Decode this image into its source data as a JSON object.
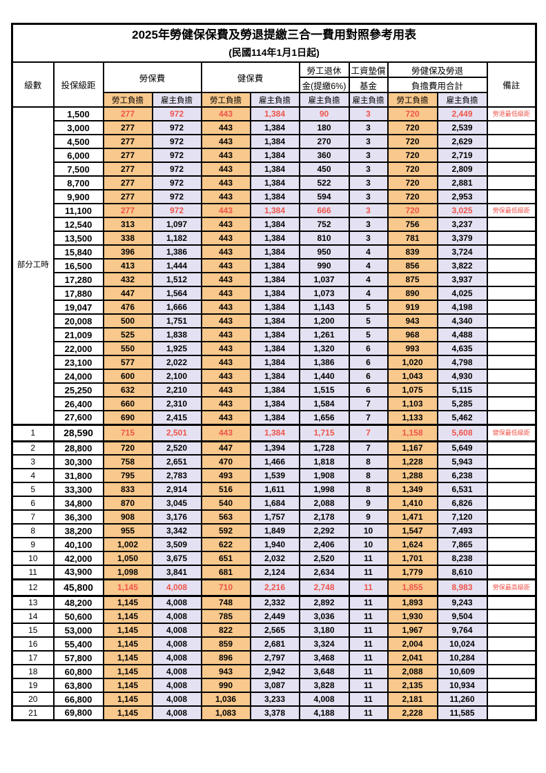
{
  "title": "2025年勞健保保費及勞退提繳三合一費用對照參考用表",
  "subtitle": "(民國114年1月1日起)",
  "header": {
    "level": "級數",
    "bracket": "投保級距",
    "labor_insurance": "勞保費",
    "health_insurance": "健保費",
    "pension_line1": "勞工退休",
    "pension_line2": "金(提繳6%)",
    "wage_fund_line1": "工資墊償",
    "wage_fund_line2": "基金",
    "total_line1": "勞健保及勞退",
    "total_line2": "負擔費用合計",
    "employee_burden": "勞工負擔",
    "employer_burden": "雇主負擔",
    "remark": "備註"
  },
  "part_time": {
    "label": "部分工時",
    "span": 23
  },
  "colors": {
    "employee_bg": "#F8C88C",
    "employer_bg": "#E4E2F2",
    "highlight_red": "#EF544B",
    "grid": "#000000"
  },
  "rows": [
    {
      "lv": null,
      "br": "1,500",
      "a": "277",
      "b": "972",
      "c": "443",
      "d": "1,384",
      "e": "90",
      "f": "3",
      "g": "720",
      "h": "2,449",
      "rm": "勞退最低級距",
      "red": true
    },
    {
      "lv": null,
      "br": "3,000",
      "a": "277",
      "b": "972",
      "c": "443",
      "d": "1,384",
      "e": "180",
      "f": "3",
      "g": "720",
      "h": "2,539",
      "rm": ""
    },
    {
      "lv": null,
      "br": "4,500",
      "a": "277",
      "b": "972",
      "c": "443",
      "d": "1,384",
      "e": "270",
      "f": "3",
      "g": "720",
      "h": "2,629",
      "rm": ""
    },
    {
      "lv": null,
      "br": "6,000",
      "a": "277",
      "b": "972",
      "c": "443",
      "d": "1,384",
      "e": "360",
      "f": "3",
      "g": "720",
      "h": "2,719",
      "rm": ""
    },
    {
      "lv": null,
      "br": "7,500",
      "a": "277",
      "b": "972",
      "c": "443",
      "d": "1,384",
      "e": "450",
      "f": "3",
      "g": "720",
      "h": "2,809",
      "rm": ""
    },
    {
      "lv": null,
      "br": "8,700",
      "a": "277",
      "b": "972",
      "c": "443",
      "d": "1,384",
      "e": "522",
      "f": "3",
      "g": "720",
      "h": "2,881",
      "rm": ""
    },
    {
      "lv": null,
      "br": "9,900",
      "a": "277",
      "b": "972",
      "c": "443",
      "d": "1,384",
      "e": "594",
      "f": "3",
      "g": "720",
      "h": "2,953",
      "rm": ""
    },
    {
      "lv": null,
      "br": "11,100",
      "a": "277",
      "b": "972",
      "c": "443",
      "d": "1,384",
      "e": "666",
      "f": "3",
      "g": "720",
      "h": "3,025",
      "rm": "勞保最低級距",
      "red": true
    },
    {
      "lv": null,
      "br": "12,540",
      "a": "313",
      "b": "1,097",
      "c": "443",
      "d": "1,384",
      "e": "752",
      "f": "3",
      "g": "756",
      "h": "3,237",
      "rm": ""
    },
    {
      "lv": null,
      "br": "13,500",
      "a": "338",
      "b": "1,182",
      "c": "443",
      "d": "1,384",
      "e": "810",
      "f": "3",
      "g": "781",
      "h": "3,379",
      "rm": ""
    },
    {
      "lv": null,
      "br": "15,840",
      "a": "396",
      "b": "1,386",
      "c": "443",
      "d": "1,384",
      "e": "950",
      "f": "4",
      "g": "839",
      "h": "3,724",
      "rm": ""
    },
    {
      "lv": null,
      "br": "16,500",
      "a": "413",
      "b": "1,444",
      "c": "443",
      "d": "1,384",
      "e": "990",
      "f": "4",
      "g": "856",
      "h": "3,822",
      "rm": ""
    },
    {
      "lv": null,
      "br": "17,280",
      "a": "432",
      "b": "1,512",
      "c": "443",
      "d": "1,384",
      "e": "1,037",
      "f": "4",
      "g": "875",
      "h": "3,937",
      "rm": ""
    },
    {
      "lv": null,
      "br": "17,880",
      "a": "447",
      "b": "1,564",
      "c": "443",
      "d": "1,384",
      "e": "1,073",
      "f": "4",
      "g": "890",
      "h": "4,025",
      "rm": ""
    },
    {
      "lv": null,
      "br": "19,047",
      "a": "476",
      "b": "1,666",
      "c": "443",
      "d": "1,384",
      "e": "1,143",
      "f": "5",
      "g": "919",
      "h": "4,198",
      "rm": ""
    },
    {
      "lv": null,
      "br": "20,008",
      "a": "500",
      "b": "1,751",
      "c": "443",
      "d": "1,384",
      "e": "1,200",
      "f": "5",
      "g": "943",
      "h": "4,340",
      "rm": ""
    },
    {
      "lv": null,
      "br": "21,009",
      "a": "525",
      "b": "1,838",
      "c": "443",
      "d": "1,384",
      "e": "1,261",
      "f": "5",
      "g": "968",
      "h": "4,488",
      "rm": ""
    },
    {
      "lv": null,
      "br": "22,000",
      "a": "550",
      "b": "1,925",
      "c": "443",
      "d": "1,384",
      "e": "1,320",
      "f": "6",
      "g": "993",
      "h": "4,635",
      "rm": ""
    },
    {
      "lv": null,
      "br": "23,100",
      "a": "577",
      "b": "2,022",
      "c": "443",
      "d": "1,384",
      "e": "1,386",
      "f": "6",
      "g": "1,020",
      "h": "4,798",
      "rm": ""
    },
    {
      "lv": null,
      "br": "24,000",
      "a": "600",
      "b": "2,100",
      "c": "443",
      "d": "1,384",
      "e": "1,440",
      "f": "6",
      "g": "1,043",
      "h": "4,930",
      "rm": ""
    },
    {
      "lv": null,
      "br": "25,250",
      "a": "632",
      "b": "2,210",
      "c": "443",
      "d": "1,384",
      "e": "1,515",
      "f": "6",
      "g": "1,075",
      "h": "5,115",
      "rm": ""
    },
    {
      "lv": null,
      "br": "26,400",
      "a": "660",
      "b": "2,310",
      "c": "443",
      "d": "1,384",
      "e": "1,584",
      "f": "7",
      "g": "1,103",
      "h": "5,285",
      "rm": ""
    },
    {
      "lv": null,
      "br": "27,600",
      "a": "690",
      "b": "2,415",
      "c": "443",
      "d": "1,384",
      "e": "1,656",
      "f": "7",
      "g": "1,133",
      "h": "5,462",
      "rm": ""
    },
    {
      "lv": "1",
      "br": "28,590",
      "a": "715",
      "b": "2,501",
      "c": "443",
      "d": "1,384",
      "e": "1,715",
      "f": "7",
      "g": "1,158",
      "h": "5,608",
      "rm": "健保最低級距",
      "red": true,
      "emph": true
    },
    {
      "lv": "2",
      "br": "28,800",
      "a": "720",
      "b": "2,520",
      "c": "447",
      "d": "1,394",
      "e": "1,728",
      "f": "7",
      "g": "1,167",
      "h": "5,649",
      "rm": ""
    },
    {
      "lv": "3",
      "br": "30,300",
      "a": "758",
      "b": "2,651",
      "c": "470",
      "d": "1,466",
      "e": "1,818",
      "f": "8",
      "g": "1,228",
      "h": "5,943",
      "rm": ""
    },
    {
      "lv": "4",
      "br": "31,800",
      "a": "795",
      "b": "2,783",
      "c": "493",
      "d": "1,539",
      "e": "1,908",
      "f": "8",
      "g": "1,288",
      "h": "6,238",
      "rm": ""
    },
    {
      "lv": "5",
      "br": "33,300",
      "a": "833",
      "b": "2,914",
      "c": "516",
      "d": "1,611",
      "e": "1,998",
      "f": "8",
      "g": "1,349",
      "h": "6,531",
      "rm": ""
    },
    {
      "lv": "6",
      "br": "34,800",
      "a": "870",
      "b": "3,045",
      "c": "540",
      "d": "1,684",
      "e": "2,088",
      "f": "9",
      "g": "1,410",
      "h": "6,826",
      "rm": ""
    },
    {
      "lv": "7",
      "br": "36,300",
      "a": "908",
      "b": "3,176",
      "c": "563",
      "d": "1,757",
      "e": "2,178",
      "f": "9",
      "g": "1,471",
      "h": "7,120",
      "rm": ""
    },
    {
      "lv": "8",
      "br": "38,200",
      "a": "955",
      "b": "3,342",
      "c": "592",
      "d": "1,849",
      "e": "2,292",
      "f": "10",
      "g": "1,547",
      "h": "7,493",
      "rm": ""
    },
    {
      "lv": "9",
      "br": "40,100",
      "a": "1,002",
      "b": "3,509",
      "c": "622",
      "d": "1,940",
      "e": "2,406",
      "f": "10",
      "g": "1,624",
      "h": "7,865",
      "rm": ""
    },
    {
      "lv": "10",
      "br": "42,000",
      "a": "1,050",
      "b": "3,675",
      "c": "651",
      "d": "2,032",
      "e": "2,520",
      "f": "11",
      "g": "1,701",
      "h": "8,238",
      "rm": ""
    },
    {
      "lv": "11",
      "br": "43,900",
      "a": "1,098",
      "b": "3,841",
      "c": "681",
      "d": "2,124",
      "e": "2,634",
      "f": "11",
      "g": "1,779",
      "h": "8,610",
      "rm": ""
    },
    {
      "lv": "12",
      "br": "45,800",
      "a": "1,145",
      "b": "4,008",
      "c": "710",
      "d": "2,216",
      "e": "2,748",
      "f": "11",
      "g": "1,855",
      "h": "8,983",
      "rm": "勞保最高級距",
      "red": true,
      "emph": true
    },
    {
      "lv": "13",
      "br": "48,200",
      "a": "1,145",
      "b": "4,008",
      "c": "748",
      "d": "2,332",
      "e": "2,892",
      "f": "11",
      "g": "1,893",
      "h": "9,243",
      "rm": ""
    },
    {
      "lv": "14",
      "br": "50,600",
      "a": "1,145",
      "b": "4,008",
      "c": "785",
      "d": "2,449",
      "e": "3,036",
      "f": "11",
      "g": "1,930",
      "h": "9,504",
      "rm": ""
    },
    {
      "lv": "15",
      "br": "53,000",
      "a": "1,145",
      "b": "4,008",
      "c": "822",
      "d": "2,565",
      "e": "3,180",
      "f": "11",
      "g": "1,967",
      "h": "9,764",
      "rm": ""
    },
    {
      "lv": "16",
      "br": "55,400",
      "a": "1,145",
      "b": "4,008",
      "c": "859",
      "d": "2,681",
      "e": "3,324",
      "f": "11",
      "g": "2,004",
      "h": "10,024",
      "rm": ""
    },
    {
      "lv": "17",
      "br": "57,800",
      "a": "1,145",
      "b": "4,008",
      "c": "896",
      "d": "2,797",
      "e": "3,468",
      "f": "11",
      "g": "2,041",
      "h": "10,284",
      "rm": ""
    },
    {
      "lv": "18",
      "br": "60,800",
      "a": "1,145",
      "b": "4,008",
      "c": "943",
      "d": "2,942",
      "e": "3,648",
      "f": "11",
      "g": "2,088",
      "h": "10,609",
      "rm": ""
    },
    {
      "lv": "19",
      "br": "63,800",
      "a": "1,145",
      "b": "4,008",
      "c": "990",
      "d": "3,087",
      "e": "3,828",
      "f": "11",
      "g": "2,135",
      "h": "10,934",
      "rm": ""
    },
    {
      "lv": "20",
      "br": "66,800",
      "a": "1,145",
      "b": "4,008",
      "c": "1,036",
      "d": "3,233",
      "e": "4,008",
      "f": "11",
      "g": "2,181",
      "h": "11,260",
      "rm": ""
    },
    {
      "lv": "21",
      "br": "69,800",
      "a": "1,145",
      "b": "4,008",
      "c": "1,083",
      "d": "3,378",
      "e": "4,188",
      "f": "11",
      "g": "2,228",
      "h": "11,585",
      "rm": ""
    }
  ]
}
